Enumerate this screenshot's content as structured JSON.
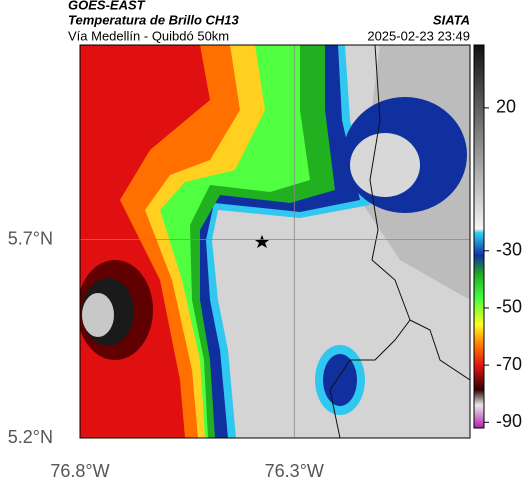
{
  "header": {
    "satellite": "GOES-EAST",
    "product": "Temperatura de Brillo CH13",
    "region": "Vía Medellín - Quibdó 50km",
    "source": "SIATA",
    "timestamp": "2025-02-23 23:49"
  },
  "map": {
    "xlim": [
      -76.8,
      -75.89
    ],
    "ylim": [
      5.2,
      6.19
    ],
    "xticks": [
      {
        "value": -76.8,
        "label": "76.8°W"
      },
      {
        "value": -76.3,
        "label": "76.3°W"
      }
    ],
    "yticks": [
      {
        "value": 5.2,
        "label": "5.2°N"
      },
      {
        "value": 5.7,
        "label": "5.7°N"
      }
    ],
    "grid": true
  },
  "colorbar": {
    "lim": [
      -92,
      42
    ],
    "ticks": [
      20,
      -30,
      -50,
      -70,
      -90
    ]
  }
}
